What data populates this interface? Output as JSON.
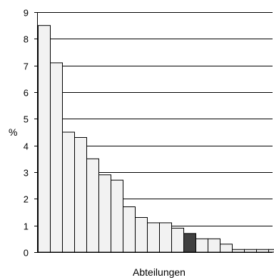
{
  "chart_data": {
    "type": "bar",
    "xlabel": "Abteilungen",
    "ylabel": "%",
    "ylim": [
      0,
      9
    ],
    "yticks": [
      0,
      1,
      2,
      3,
      4,
      5,
      6,
      7,
      8,
      9
    ],
    "grid": "horizontal",
    "legend": "none",
    "values": [
      8.5,
      7.1,
      4.5,
      4.3,
      3.5,
      2.9,
      2.7,
      1.7,
      1.3,
      1.1,
      1.1,
      0.9,
      0.7,
      0.5,
      0.5,
      0.3,
      0.1,
      0.1,
      0.1,
      0.1
    ],
    "highlight_index": 12,
    "colors": {
      "bar_fill": "#f2f2f2",
      "bar_highlight": "#404040",
      "bar_stroke": "#000000",
      "grid": "#000000"
    }
  }
}
